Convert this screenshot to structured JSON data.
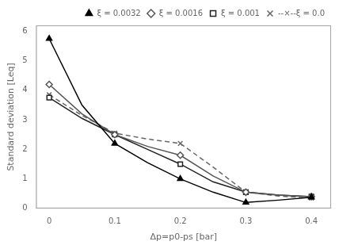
{
  "chart_data": {
    "type": "line",
    "xlabel": "Δp=p0-ps [bar]",
    "ylabel": "Standard deviation [Leq]",
    "x": [
      0,
      0.05,
      0.1,
      0.15,
      0.2,
      0.25,
      0.3,
      0.35,
      0.4
    ],
    "series": [
      {
        "name": "ξ = 0.0032",
        "color": "#000000",
        "line_style": "solid",
        "marker": "triangle",
        "values": [
          5.75,
          3.5,
          2.2,
          1.55,
          1.0,
          0.55,
          0.2,
          0.28,
          0.38
        ],
        "marker_x": [
          0,
          0.1,
          0.2,
          0.3,
          0.4
        ]
      },
      {
        "name": "ξ = 0.0016",
        "color": "#555555",
        "line_style": "solid",
        "marker": "diamond",
        "values": [
          4.2,
          3.2,
          2.5,
          2.1,
          1.8,
          1.1,
          0.55,
          0.45,
          0.4
        ],
        "marker_x": [
          0,
          0.1,
          0.2,
          0.3,
          0.4
        ]
      },
      {
        "name": "ξ = 0.001",
        "color": "#222222",
        "line_style": "solid",
        "marker": "square",
        "values": [
          3.75,
          3.05,
          2.5,
          2.0,
          1.5,
          0.9,
          0.55,
          0.45,
          0.4
        ],
        "marker_x": [
          0,
          0.1,
          0.2,
          0.3,
          0.4
        ]
      },
      {
        "name": "--×--ξ = 0.0",
        "color": "#666666",
        "line_style": "dashed",
        "marker": "x",
        "values": [
          3.85,
          3.15,
          2.55,
          2.35,
          2.2,
          1.4,
          0.55,
          0.42,
          0.35
        ],
        "marker_x": [
          0,
          0.1,
          0.2,
          0.3,
          0.4
        ]
      }
    ],
    "xlim": [
      -0.02,
      0.43
    ],
    "ylim": [
      0,
      6.2
    ],
    "xticks": [
      0,
      0.1,
      0.2,
      0.3,
      0.4
    ],
    "yticks": [
      0,
      1,
      2,
      3,
      4,
      5,
      6
    ],
    "grid": false,
    "legend": "upper right"
  }
}
